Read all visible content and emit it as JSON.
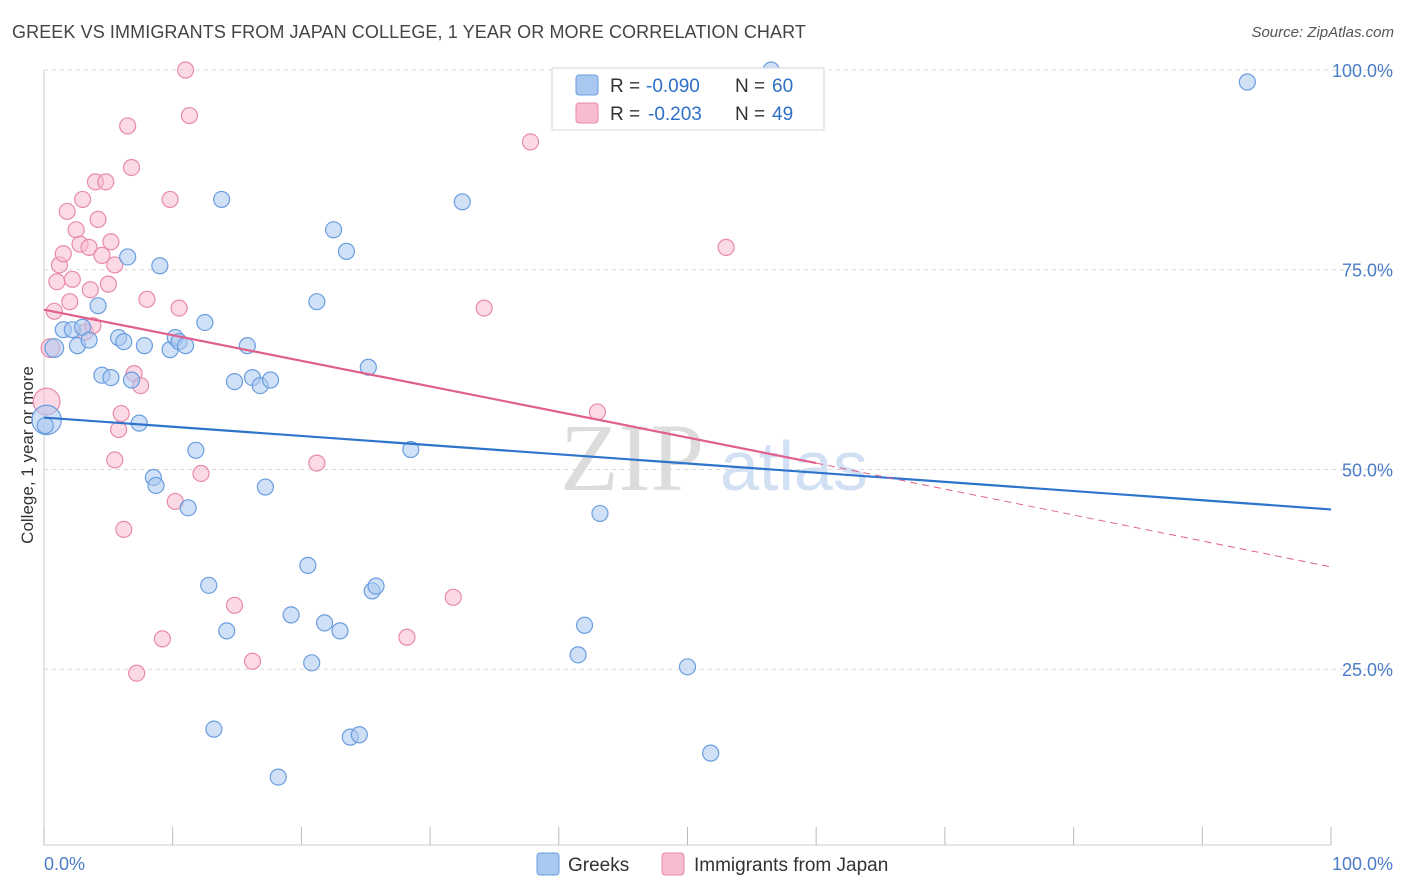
{
  "header": {
    "title": "GREEK VS IMMIGRANTS FROM JAPAN COLLEGE, 1 YEAR OR MORE CORRELATION CHART",
    "source": "Source: ZipAtlas.com"
  },
  "watermark": {
    "zip": "ZIP",
    "atlas": "atlas"
  },
  "chart_data": {
    "type": "scatter",
    "ylabel": "College, 1 year or more",
    "xlim": [
      0,
      100
    ],
    "ylim": [
      3,
      100
    ],
    "x_tick_labels": [
      "0.0%",
      "100.0%"
    ],
    "y_ticks": [
      25,
      50,
      75,
      100
    ],
    "y_tick_labels": [
      "25.0%",
      "50.0%",
      "75.0%",
      "100.0%"
    ],
    "grid": true,
    "legend_top": [
      {
        "r_label": "R =",
        "r_value": "-0.090",
        "n_label": "N =",
        "n_value": "60"
      },
      {
        "r_label": "R =",
        "r_value": "-0.203",
        "n_label": "N =",
        "n_value": "49"
      }
    ],
    "legend_bottom": [
      "Greeks",
      "Immigrants from Japan"
    ],
    "colors": {
      "greeks_fill": "#a9c8f0",
      "greeks_stroke": "#6a9de0",
      "greeks_line": "#2e74cc",
      "japan_fill": "#f7bcd0",
      "japan_stroke": "#e88aa9",
      "japan_line": "#e0608c",
      "axis_text": "#4a7cc8",
      "grid": "#d8d8d8"
    },
    "series": [
      {
        "name": "Greeks",
        "points": [
          [
            0.2,
            56.2
          ],
          [
            0.8,
            65.2
          ],
          [
            1.5,
            67.5
          ],
          [
            2.2,
            67.5
          ],
          [
            2.6,
            65.5
          ],
          [
            3.0,
            67.8
          ],
          [
            3.5,
            66.2
          ],
          [
            4.2,
            70.5
          ],
          [
            4.5,
            61.8
          ],
          [
            5.2,
            61.5
          ],
          [
            5.8,
            66.5
          ],
          [
            6.2,
            66.0
          ],
          [
            6.5,
            76.6
          ],
          [
            6.8,
            61.2
          ],
          [
            7.4,
            55.8
          ],
          [
            7.8,
            65.5
          ],
          [
            8.5,
            49.0
          ],
          [
            8.7,
            48.0
          ],
          [
            9.0,
            75.5
          ],
          [
            9.8,
            65.0
          ],
          [
            10.2,
            66.5
          ],
          [
            10.5,
            66.0
          ],
          [
            11.0,
            65.5
          ],
          [
            11.2,
            45.2
          ],
          [
            11.8,
            52.4
          ],
          [
            12.5,
            68.4
          ],
          [
            12.8,
            35.5
          ],
          [
            13.2,
            17.5
          ],
          [
            13.8,
            83.8
          ],
          [
            14.2,
            29.8
          ],
          [
            14.8,
            61.0
          ],
          [
            15.8,
            65.5
          ],
          [
            16.2,
            61.5
          ],
          [
            16.8,
            60.5
          ],
          [
            17.2,
            47.8
          ],
          [
            17.6,
            61.2
          ],
          [
            18.2,
            11.5
          ],
          [
            19.2,
            31.8
          ],
          [
            20.5,
            38.0
          ],
          [
            20.8,
            25.8
          ],
          [
            21.2,
            71.0
          ],
          [
            21.8,
            30.8
          ],
          [
            22.5,
            80.0
          ],
          [
            23.0,
            29.8
          ],
          [
            23.5,
            77.3
          ],
          [
            23.8,
            16.5
          ],
          [
            24.5,
            16.8
          ],
          [
            25.2,
            62.8
          ],
          [
            25.5,
            34.8
          ],
          [
            25.8,
            35.4
          ],
          [
            28.5,
            52.5
          ],
          [
            32.5,
            83.5
          ],
          [
            41.5,
            26.8
          ],
          [
            42.0,
            30.5
          ],
          [
            43.2,
            44.5
          ],
          [
            50.0,
            25.3
          ],
          [
            51.8,
            14.5
          ],
          [
            56.5,
            100.0
          ],
          [
            93.5,
            98.5
          ],
          [
            0.1,
            55.5
          ]
        ],
        "sizes": [
          22,
          14,
          12,
          12,
          12,
          12,
          12,
          12,
          12,
          12,
          12,
          12,
          12,
          12,
          12,
          12,
          12,
          12,
          12,
          12,
          12,
          12,
          12,
          12,
          12,
          12,
          12,
          12,
          12,
          12,
          12,
          12,
          12,
          12,
          12,
          12,
          12,
          12,
          12,
          12,
          12,
          12,
          12,
          12,
          12,
          12,
          12,
          12,
          12,
          12,
          12,
          12,
          12,
          12,
          12,
          12,
          12,
          12,
          12,
          12
        ]
      },
      {
        "name": "Immigrants from Japan",
        "points": [
          [
            0.2,
            58.5
          ],
          [
            0.5,
            65.2
          ],
          [
            0.8,
            69.8
          ],
          [
            1.0,
            73.5
          ],
          [
            1.2,
            75.6
          ],
          [
            1.5,
            77.0
          ],
          [
            1.8,
            82.3
          ],
          [
            2.0,
            71.0
          ],
          [
            2.2,
            73.8
          ],
          [
            2.5,
            80.0
          ],
          [
            2.8,
            78.2
          ],
          [
            3.0,
            83.8
          ],
          [
            3.2,
            67.2
          ],
          [
            3.5,
            77.8
          ],
          [
            3.6,
            72.5
          ],
          [
            3.8,
            68.0
          ],
          [
            4.0,
            86.0
          ],
          [
            4.2,
            81.3
          ],
          [
            4.5,
            76.8
          ],
          [
            4.8,
            86.0
          ],
          [
            5.0,
            73.2
          ],
          [
            5.2,
            78.5
          ],
          [
            5.5,
            75.6
          ],
          [
            5.8,
            55.0
          ],
          [
            6.0,
            57.0
          ],
          [
            6.2,
            42.5
          ],
          [
            6.5,
            93.0
          ],
          [
            6.8,
            87.8
          ],
          [
            7.0,
            62.0
          ],
          [
            7.2,
            24.5
          ],
          [
            7.5,
            60.5
          ],
          [
            8.0,
            71.3
          ],
          [
            9.2,
            28.8
          ],
          [
            9.8,
            83.8
          ],
          [
            10.2,
            46.0
          ],
          [
            10.5,
            70.2
          ],
          [
            11.0,
            100.0
          ],
          [
            11.3,
            94.3
          ],
          [
            12.2,
            49.5
          ],
          [
            14.8,
            33.0
          ],
          [
            16.2,
            26.0
          ],
          [
            21.2,
            50.8
          ],
          [
            28.2,
            29.0
          ],
          [
            31.8,
            34.0
          ],
          [
            34.2,
            70.2
          ],
          [
            37.8,
            91.0
          ],
          [
            43.0,
            57.2
          ],
          [
            53.0,
            77.8
          ],
          [
            5.5,
            51.2
          ]
        ],
        "sizes": [
          20,
          14,
          12,
          12,
          12,
          12,
          12,
          12,
          12,
          12,
          12,
          12,
          12,
          12,
          12,
          12,
          12,
          12,
          12,
          12,
          12,
          12,
          12,
          12,
          12,
          12,
          12,
          12,
          12,
          12,
          12,
          12,
          12,
          12,
          12,
          12,
          12,
          12,
          12,
          12,
          12,
          12,
          12,
          12,
          12,
          12,
          12,
          12,
          12
        ]
      }
    ],
    "trend_lines": [
      {
        "name": "Greeks",
        "x": [
          0,
          100
        ],
        "y": [
          56.5,
          45.0
        ],
        "style": "solid"
      },
      {
        "name": "Immigrants from Japan",
        "x": [
          0,
          60
        ],
        "y": [
          70.0,
          50.8
        ],
        "style": "solid"
      },
      {
        "name": "Immigrants from Japan",
        "x": [
          60,
          100
        ],
        "y": [
          50.8,
          37.8
        ],
        "style": "dashed"
      }
    ]
  }
}
